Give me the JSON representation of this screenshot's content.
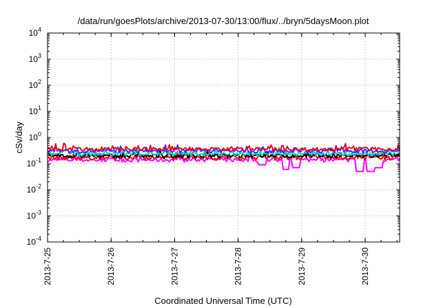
{
  "chart_data": {
    "type": "line",
    "title": "/data/run/goesPlots/archive/2013-07-30/13:00/flux/../bryn/5daysMoon.plot",
    "xlabel": "Coordinated Universal Time (UTC)",
    "ylabel": "cSv/day",
    "y_scale": "log",
    "ylim": [
      0.0001,
      10000
    ],
    "y_ticks": [
      {
        "value": 0.0001,
        "base": "10",
        "exp": "-4"
      },
      {
        "value": 0.001,
        "base": "10",
        "exp": "-3"
      },
      {
        "value": 0.01,
        "base": "10",
        "exp": "-2"
      },
      {
        "value": 0.1,
        "base": "10",
        "exp": "-1"
      },
      {
        "value": 1,
        "base": "10",
        "exp": "0"
      },
      {
        "value": 10,
        "base": "10",
        "exp": "1"
      },
      {
        "value": 100,
        "base": "10",
        "exp": "2"
      },
      {
        "value": 1000,
        "base": "10",
        "exp": "3"
      },
      {
        "value": 10000,
        "base": "10",
        "exp": "4"
      }
    ],
    "xlim": [
      "2013-07-25T00:00",
      "2013-07-30T13:00"
    ],
    "x_ticks": [
      "2013-7-25",
      "2013-7-26",
      "2013-7-27",
      "2013-7-28",
      "2013-7-29",
      "2013-7-30"
    ],
    "grid": true,
    "legend": "none",
    "series": [
      {
        "color": "#ff00ff",
        "base_level": 0.14,
        "dips": [
          [
            "2013-07-28T09:00",
            0.09
          ],
          [
            "2013-07-28T18:00",
            0.06
          ],
          [
            "2013-07-28T22:00",
            0.07
          ],
          [
            "2013-07-29T22:00",
            0.05
          ],
          [
            "2013-07-30T02:00",
            0.05
          ],
          [
            "2013-07-30T05:00",
            0.07
          ]
        ]
      },
      {
        "color": "#ff0000",
        "base_level": 0.17
      },
      {
        "color": "#000000",
        "base_level": 0.2
      },
      {
        "color": "#00cccc",
        "base_level": 0.24
      },
      {
        "color": "#3333ff",
        "base_level": 0.31
      },
      {
        "color": "#e8002a",
        "base_level": 0.36
      }
    ]
  }
}
